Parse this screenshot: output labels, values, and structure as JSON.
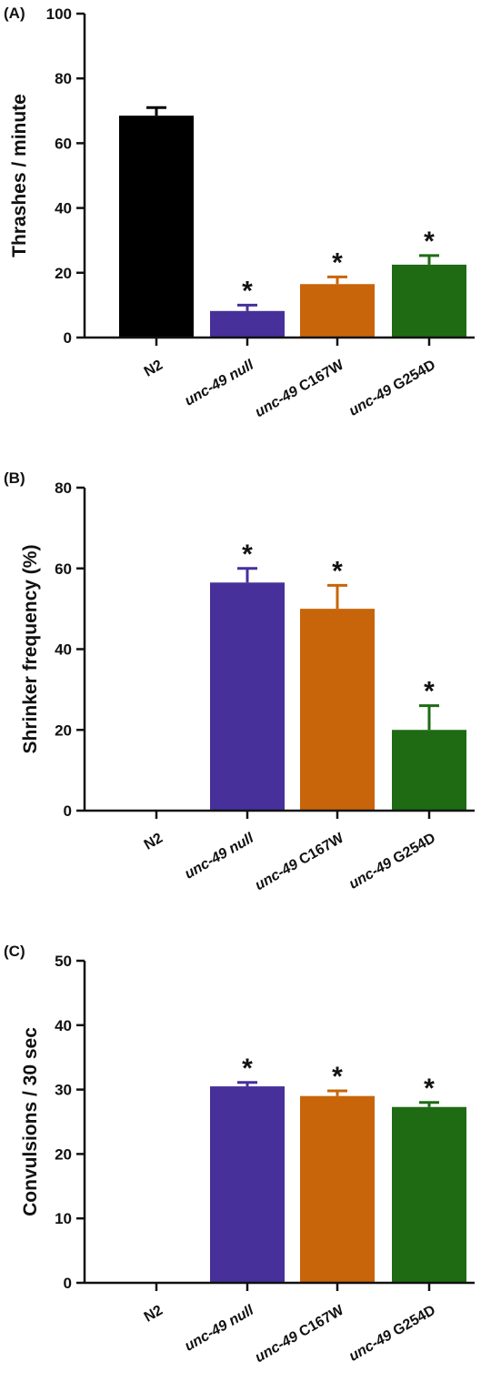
{
  "chart_data": [
    {
      "panel_label": "(A)",
      "type": "bar",
      "categories": [
        "N2",
        "unc-49 null",
        "unc-49 C167W",
        "unc-49 G254D"
      ],
      "values": [
        68.5,
        8.2,
        16.5,
        22.5
      ],
      "errors": [
        2.5,
        1.8,
        2.2,
        2.8
      ],
      "significance": [
        "",
        "*",
        "*",
        "*"
      ],
      "colors": [
        "#000000",
        "#47309a",
        "#c8650a",
        "#1e6b14"
      ],
      "ylabel": "Thrashes / minute",
      "ylim": [
        0,
        100
      ],
      "yticks": [
        0,
        20,
        40,
        60,
        80,
        100
      ],
      "grid": false
    },
    {
      "panel_label": "(B)",
      "type": "bar",
      "categories": [
        "N2",
        "unc-49 null",
        "unc-49 C167W",
        "unc-49 G254D"
      ],
      "values": [
        0,
        56.5,
        50,
        20
      ],
      "errors": [
        0,
        3.5,
        5.8,
        6
      ],
      "significance": [
        "",
        "*",
        "*",
        "*"
      ],
      "colors": [
        "#000000",
        "#47309a",
        "#c8650a",
        "#1e6b14"
      ],
      "ylabel": "Shrinker frequency (%)",
      "ylim": [
        0,
        80
      ],
      "yticks": [
        0,
        20,
        40,
        60,
        80
      ],
      "grid": false
    },
    {
      "panel_label": "(C)",
      "type": "bar",
      "categories": [
        "N2",
        "unc-49 null",
        "unc-49 C167W",
        "unc-49 G254D"
      ],
      "values": [
        0,
        30.5,
        29,
        27.3
      ],
      "errors": [
        0,
        0.6,
        0.8,
        0.7
      ],
      "significance": [
        "",
        "*",
        "*",
        "*"
      ],
      "colors": [
        "#000000",
        "#47309a",
        "#c8650a",
        "#1e6b14"
      ],
      "ylabel": "Convulsions / 30 sec",
      "ylim": [
        0,
        50
      ],
      "yticks": [
        0,
        10,
        20,
        30,
        40,
        50
      ],
      "grid": false
    }
  ]
}
